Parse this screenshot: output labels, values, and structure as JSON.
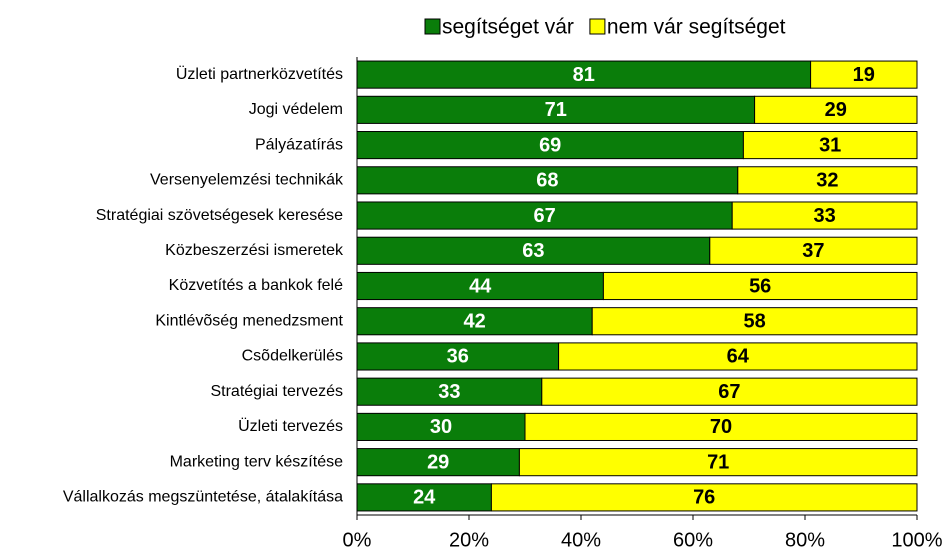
{
  "chart_data": {
    "type": "bar",
    "orientation": "horizontal",
    "stacked": true,
    "categories": [
      "Üzleti partnerközvetítés",
      "Jogi védelem",
      "Pályázatírás",
      "Versenyelemzési technikák",
      "Stratégiai szövetségesek keresése",
      "Közbeszerzési ismeretek",
      "Közvetítés a bankok felé",
      "Kintlévõség menedzsment",
      "Csõdelkerülés",
      "Stratégiai tervezés",
      "Üzleti tervezés",
      "Marketing terv készítése",
      "Vállalkozás megszüntetése, átalakítása"
    ],
    "series": [
      {
        "name": "segítséget vár",
        "color": "#0a7d0a",
        "label_color": "#ffffff",
        "values": [
          81,
          71,
          69,
          68,
          67,
          63,
          44,
          42,
          36,
          33,
          30,
          29,
          24
        ]
      },
      {
        "name": "nem vár segítséget",
        "color": "#ffff00",
        "label_color": "#000000",
        "values": [
          19,
          29,
          31,
          32,
          33,
          37,
          56,
          58,
          64,
          67,
          70,
          71,
          76
        ]
      }
    ],
    "xlim": [
      0,
      100
    ],
    "xticks": [
      {
        "value": 0,
        "label": "0%"
      },
      {
        "value": 20,
        "label": "20%"
      },
      {
        "value": 40,
        "label": "40%"
      },
      {
        "value": 60,
        "label": "60%"
      },
      {
        "value": 80,
        "label": "80%"
      },
      {
        "value": 100,
        "label": "100%"
      }
    ],
    "legend": "top",
    "grid": false
  }
}
